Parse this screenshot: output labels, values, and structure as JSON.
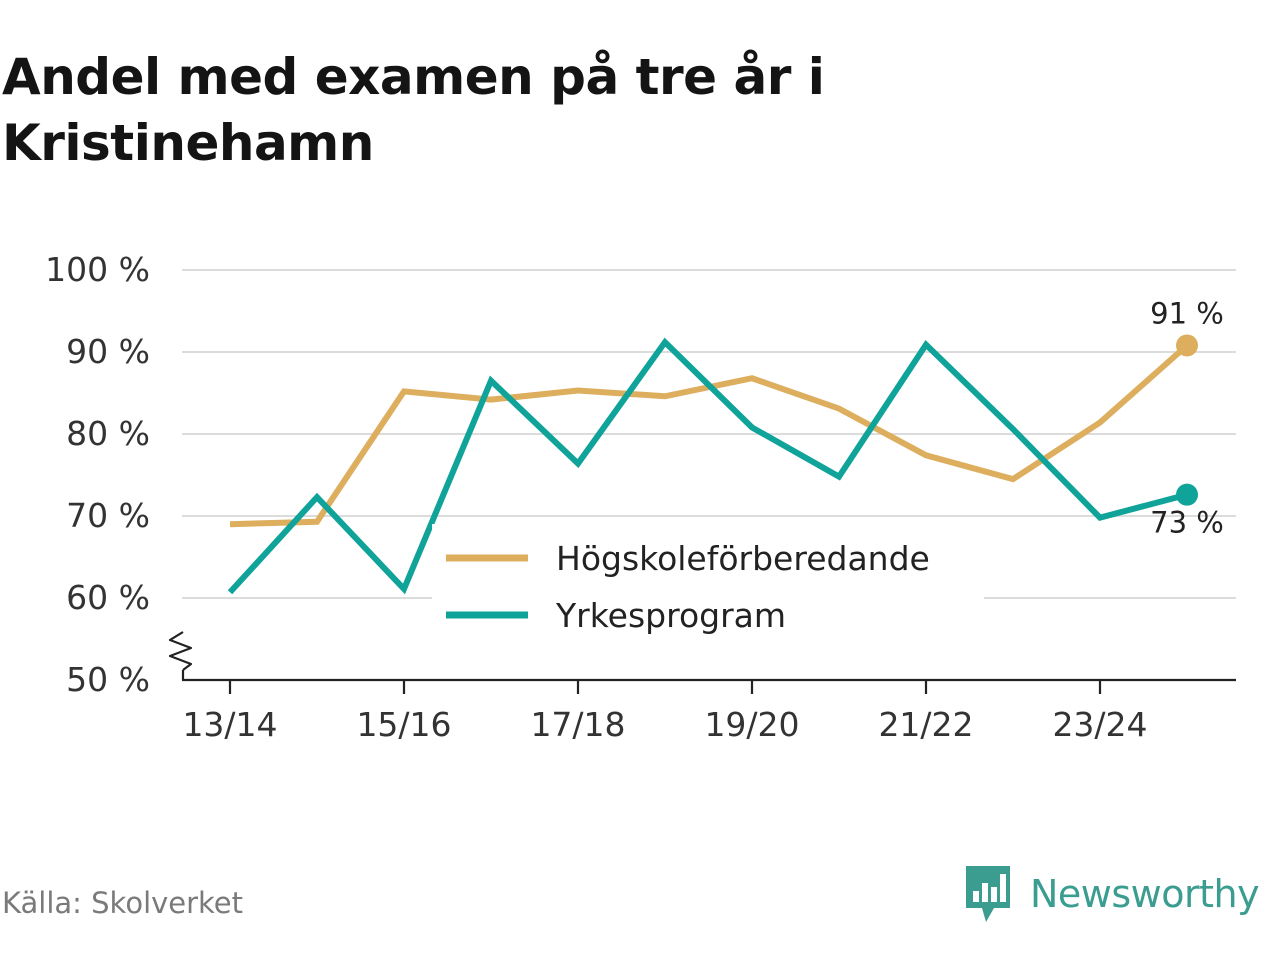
{
  "title": "Andel med examen på tre år i Kristinehamn",
  "source": "Källa: Skolverket",
  "brand": {
    "name": "Newsworthy",
    "icon": "bar-chart-speech-bubble-icon",
    "color": "#3a9d8f"
  },
  "chart_data": {
    "type": "line",
    "title": "Andel med examen på tre år i Kristinehamn",
    "xlabel": "",
    "ylabel": "",
    "x": [
      "13/14",
      "14/15",
      "15/16",
      "16/17",
      "17/18",
      "18/19",
      "19/20",
      "20/21",
      "21/22",
      "22/23",
      "23/24",
      "24/25"
    ],
    "x_tick_labels": [
      "13/14",
      "",
      "15/16",
      "",
      "17/18",
      "",
      "19/20",
      "",
      "21/22",
      "",
      "23/24",
      ""
    ],
    "ylim": [
      50,
      100
    ],
    "y_ticks": [
      50,
      60,
      70,
      80,
      90,
      100
    ],
    "y_tick_labels": [
      "50 %",
      "60 %",
      "70 %",
      "80 %",
      "90 %",
      "100 %"
    ],
    "axis_break": true,
    "grid": true,
    "legend_position": "center",
    "series": [
      {
        "name": "Högskoleförberedande",
        "color": "#dcae5e",
        "values": [
          69,
          69.3,
          85.2,
          84.2,
          85.3,
          84.6,
          86.8,
          83.1,
          77.4,
          74.5,
          81.4,
          90.8
        ],
        "end_label": "91 %"
      },
      {
        "name": "Yrkesprogram",
        "color": "#0fa39a",
        "values": [
          60.7,
          72.3,
          61.1,
          86.5,
          76.4,
          91.2,
          80.8,
          74.8,
          90.9,
          80.6,
          69.8,
          72.6
        ],
        "end_label": "73 %"
      }
    ]
  }
}
